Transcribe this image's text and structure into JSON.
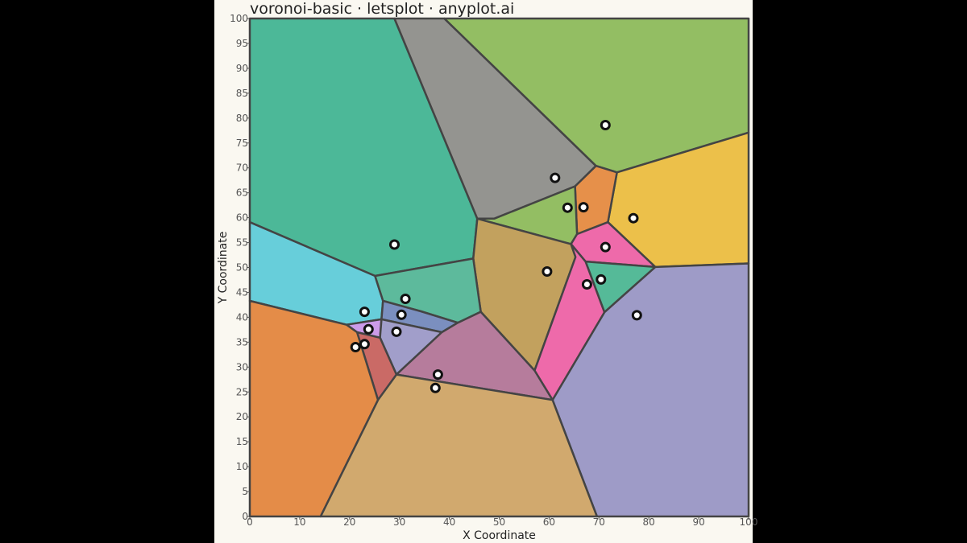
{
  "chart_data": {
    "type": "voronoi",
    "title": "voronoi-basic · letsplot · anyplot.ai",
    "xlabel": "X Coordinate",
    "ylabel": "Y Coordinate",
    "xlim": [
      0,
      100
    ],
    "ylim": [
      0,
      100
    ],
    "x_ticks": [
      "0",
      "10",
      "20",
      "30",
      "40",
      "50",
      "60",
      "70",
      "80",
      "90",
      "100"
    ],
    "y_ticks": [
      "0",
      "5",
      "10",
      "15",
      "20",
      "25",
      "30",
      "35",
      "40",
      "45",
      "50",
      "55",
      "60",
      "65",
      "70",
      "75",
      "80",
      "85",
      "90",
      "95",
      "100"
    ],
    "grid": false,
    "sites": [
      {
        "x": 29.0,
        "y": 54.6
      },
      {
        "x": 71.3,
        "y": 78.6
      },
      {
        "x": 61.2,
        "y": 68.0
      },
      {
        "x": 63.7,
        "y": 62.0
      },
      {
        "x": 66.9,
        "y": 62.1
      },
      {
        "x": 76.9,
        "y": 59.9
      },
      {
        "x": 71.3,
        "y": 54.1
      },
      {
        "x": 59.6,
        "y": 49.2
      },
      {
        "x": 70.4,
        "y": 47.6
      },
      {
        "x": 67.6,
        "y": 46.6
      },
      {
        "x": 77.6,
        "y": 40.4
      },
      {
        "x": 31.2,
        "y": 43.7
      },
      {
        "x": 23.0,
        "y": 41.1
      },
      {
        "x": 30.4,
        "y": 40.5
      },
      {
        "x": 23.8,
        "y": 37.6
      },
      {
        "x": 29.4,
        "y": 37.1
      },
      {
        "x": 23.0,
        "y": 34.6
      },
      {
        "x": 21.2,
        "y": 34.0
      },
      {
        "x": 37.7,
        "y": 28.5
      },
      {
        "x": 37.2,
        "y": 25.8
      }
    ],
    "cells": [
      {
        "color": "#4CB898",
        "points": [
          [
            0,
            100
          ],
          [
            29,
            100
          ],
          [
            45.6,
            59.8
          ],
          [
            44.8,
            51.8
          ],
          [
            25.1,
            48.3
          ],
          [
            0,
            59.1
          ]
        ]
      },
      {
        "color": "#949490",
        "points": [
          [
            29,
            100
          ],
          [
            39,
            100
          ],
          [
            69.4,
            70.4
          ],
          [
            65.2,
            66.3
          ],
          [
            49,
            59.8
          ],
          [
            45.6,
            59.8
          ]
        ]
      },
      {
        "color": "#93BE63",
        "points": [
          [
            39,
            100
          ],
          [
            100,
            100
          ],
          [
            100,
            77.1
          ],
          [
            73.6,
            69.1
          ],
          [
            69.4,
            70.4
          ]
        ]
      },
      {
        "color": "#ECC04A",
        "points": [
          [
            73.6,
            69.1
          ],
          [
            100,
            77.1
          ],
          [
            100,
            50.8
          ],
          [
            81.3,
            50.1
          ],
          [
            71.8,
            59.1
          ]
        ]
      },
      {
        "color": "#E6904A",
        "points": [
          [
            69.4,
            70.4
          ],
          [
            73.6,
            69.1
          ],
          [
            71.8,
            59.1
          ],
          [
            65.6,
            56.7
          ],
          [
            65.2,
            66.3
          ]
        ]
      },
      {
        "color": "#93BE63",
        "points": [
          [
            45.6,
            59.8
          ],
          [
            49,
            59.8
          ],
          [
            65.2,
            66.3
          ],
          [
            65.6,
            56.7
          ],
          [
            64.4,
            54.7
          ]
        ]
      },
      {
        "color": "#EE6AAA",
        "points": [
          [
            65.6,
            56.7
          ],
          [
            71.8,
            59.1
          ],
          [
            81.3,
            50.1
          ],
          [
            67.3,
            51.2
          ],
          [
            64.4,
            54.7
          ]
        ]
      },
      {
        "color": "#C2A15E",
        "points": [
          [
            45.6,
            59.8
          ],
          [
            64.4,
            54.7
          ],
          [
            65.3,
            52.1
          ],
          [
            57.1,
            29.3
          ],
          [
            46.3,
            41.1
          ],
          [
            44.8,
            51.8
          ]
        ]
      },
      {
        "color": "#55BA98",
        "points": [
          [
            67.3,
            51.2
          ],
          [
            81.3,
            50.1
          ],
          [
            71.1,
            41.0
          ]
        ]
      },
      {
        "color": "#EE6AAA",
        "points": [
          [
            64.4,
            54.7
          ],
          [
            67.3,
            51.2
          ],
          [
            71.1,
            41.0
          ],
          [
            60.7,
            23.4
          ],
          [
            57.1,
            29.3
          ],
          [
            65.3,
            52.1
          ]
        ]
      },
      {
        "color": "#9E9BC7",
        "points": [
          [
            81.3,
            50.1
          ],
          [
            100,
            50.8
          ],
          [
            100,
            0
          ],
          [
            69.6,
            0
          ],
          [
            60.7,
            23.4
          ],
          [
            71.1,
            41.0
          ]
        ]
      },
      {
        "color": "#67CEDA",
        "points": [
          [
            0,
            59.1
          ],
          [
            25.1,
            48.3
          ],
          [
            26.7,
            43.3
          ],
          [
            26.4,
            39.6
          ],
          [
            19.4,
            38.5
          ],
          [
            0,
            43.3
          ]
        ]
      },
      {
        "color": "#5DBA9C",
        "points": [
          [
            25.1,
            48.3
          ],
          [
            44.8,
            51.8
          ],
          [
            46.3,
            41.1
          ],
          [
            41.7,
            38.9
          ],
          [
            34.3,
            41.2
          ],
          [
            26.7,
            43.3
          ]
        ]
      },
      {
        "color": "#7B8FBF",
        "points": [
          [
            26.7,
            43.3
          ],
          [
            34.3,
            41.2
          ],
          [
            41.7,
            38.9
          ],
          [
            38.5,
            37.0
          ],
          [
            26.4,
            39.6
          ]
        ]
      },
      {
        "color": "#CC9BE9",
        "points": [
          [
            19.4,
            38.5
          ],
          [
            26.4,
            39.6
          ],
          [
            26.1,
            35.9
          ],
          [
            21.5,
            37.0
          ]
        ]
      },
      {
        "color": "#A19ECA",
        "points": [
          [
            26.4,
            39.6
          ],
          [
            38.5,
            37.0
          ],
          [
            29.4,
            28.5
          ],
          [
            26.1,
            35.9
          ]
        ]
      },
      {
        "color": "#CA6A66",
        "points": [
          [
            21.5,
            37.0
          ],
          [
            26.1,
            35.9
          ],
          [
            29.4,
            28.5
          ],
          [
            25.7,
            23.4
          ]
        ]
      },
      {
        "color": "#E48C48",
        "points": [
          [
            0,
            43.3
          ],
          [
            19.4,
            38.5
          ],
          [
            21.5,
            37.0
          ],
          [
            25.7,
            23.4
          ],
          [
            14.2,
            0
          ],
          [
            0,
            0
          ]
        ]
      },
      {
        "color": "#B67C9C",
        "points": [
          [
            29.4,
            28.5
          ],
          [
            38.5,
            37.0
          ],
          [
            41.7,
            38.9
          ],
          [
            46.3,
            41.1
          ],
          [
            57.1,
            29.3
          ],
          [
            60.7,
            23.4
          ]
        ]
      },
      {
        "color": "#D1A96E",
        "points": [
          [
            14.2,
            0
          ],
          [
            25.7,
            23.4
          ],
          [
            29.4,
            28.5
          ],
          [
            60.7,
            23.4
          ],
          [
            69.6,
            0
          ]
        ]
      }
    ]
  }
}
